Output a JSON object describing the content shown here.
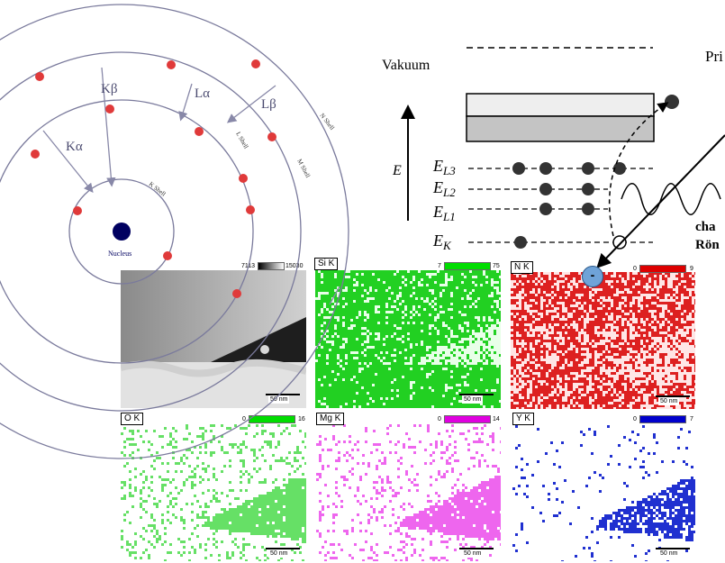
{
  "atom": {
    "shells": [
      "K Shell",
      "L Shell",
      "M Shell",
      "N Shell"
    ],
    "nucleus": "Nucleus",
    "transitions": [
      "Kα",
      "Kβ",
      "Lα",
      "Lβ"
    ]
  },
  "energy": {
    "vacuum": "Vakuum",
    "axis": "E",
    "levels": [
      "E",
      "E",
      "E",
      "E"
    ],
    "level_subs": [
      "L3",
      "L2",
      "L1",
      "K"
    ],
    "primary_partial": "Pri",
    "char_partial": "cha",
    "roent_partial": "Rön",
    "electron_sign": "-"
  },
  "maps": [
    {
      "label": "",
      "min": "7113",
      "max": "15030",
      "scale": "50 nm"
    },
    {
      "label": "Si K",
      "min": "7",
      "max": "75",
      "color": "#00dd00",
      "scale": "50 nm"
    },
    {
      "label": "N K",
      "min": "0",
      "max": "9",
      "color": "#dd0000",
      "scale": "50 nm"
    },
    {
      "label": "O K",
      "min": "0",
      "max": "16",
      "color": "#00dd00",
      "scale": "50 nm"
    },
    {
      "label": "Mg K",
      "min": "0",
      "max": "14",
      "color": "#e000e0",
      "scale": "50 nm"
    },
    {
      "label": "Y K",
      "min": "0",
      "max": "7",
      "color": "#0000cc",
      "scale": "50 nm"
    }
  ]
}
